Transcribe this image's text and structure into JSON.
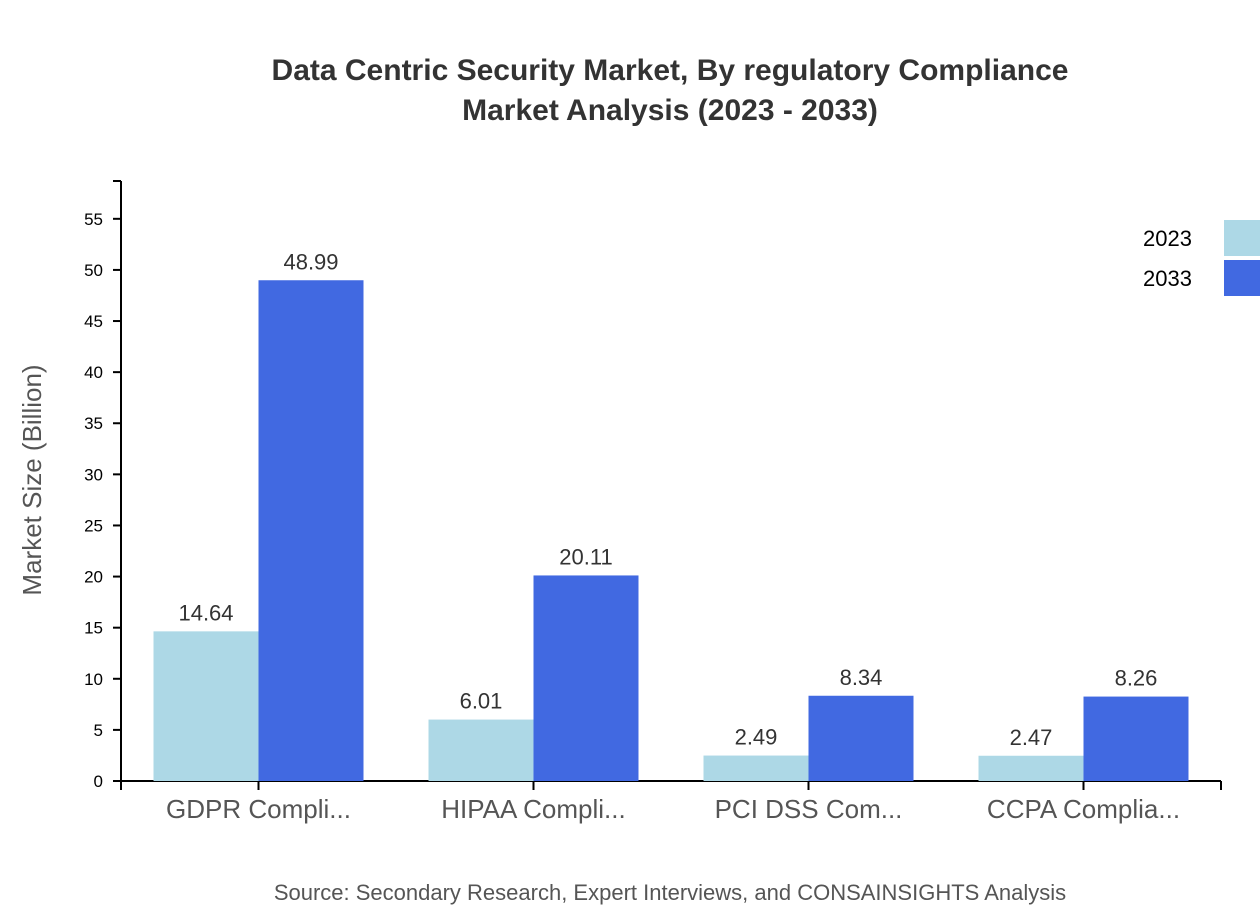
{
  "chart_data": {
    "type": "bar",
    "title": [
      "Data Centric Security Market, By regulatory Compliance",
      "Market Analysis (2023 - 2033)"
    ],
    "xlabel": "",
    "ylabel": "Market Size (Billion)",
    "ylim": [
      0,
      58.7
    ],
    "yticks": [
      0,
      5,
      10,
      15,
      20,
      25,
      30,
      35,
      40,
      45,
      50,
      55
    ],
    "grid": false,
    "legend_position": "top-right",
    "categories": [
      "GDPR Compli...",
      "HIPAA Compli...",
      "PCI DSS Com...",
      "CCPA Complia..."
    ],
    "series": [
      {
        "name": "2023",
        "color": "#add8e6",
        "values": [
          14.64,
          6.01,
          2.49,
          2.47
        ]
      },
      {
        "name": "2033",
        "color": "#4169e1",
        "values": [
          48.99,
          20.11,
          8.34,
          8.26
        ]
      }
    ],
    "source": "Source: Secondary Research, Expert Interviews, and CONSAINSIGHTS Analysis"
  }
}
